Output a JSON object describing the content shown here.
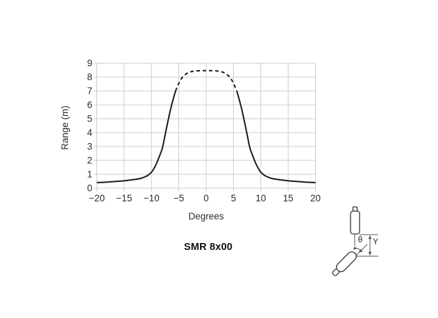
{
  "chart_data": {
    "type": "line",
    "title": "",
    "xlabel": "Degrees",
    "ylabel": "Range (m)",
    "caption": "SMR 8x00",
    "xlim": [
      -20,
      20
    ],
    "ylim": [
      0,
      9
    ],
    "xticks": [
      -20,
      -15,
      -10,
      -5,
      0,
      5,
      10,
      15,
      20
    ],
    "yticks": [
      0,
      1,
      2,
      3,
      4,
      5,
      6,
      7,
      8,
      9
    ],
    "grid": true,
    "grid_color": "#cccccc",
    "line_color": "#1a1a1a",
    "series": [
      {
        "name": "range-solid-left",
        "style": "solid",
        "points": [
          [
            -20,
            0.4
          ],
          [
            -19,
            0.42
          ],
          [
            -18,
            0.44
          ],
          [
            -17,
            0.47
          ],
          [
            -16,
            0.5
          ],
          [
            -15,
            0.53
          ],
          [
            -14,
            0.58
          ],
          [
            -13,
            0.63
          ],
          [
            -12,
            0.7
          ],
          [
            -11,
            0.85
          ],
          [
            -10.5,
            0.97
          ],
          [
            -10,
            1.15
          ],
          [
            -9.5,
            1.45
          ],
          [
            -9,
            1.85
          ],
          [
            -8.5,
            2.35
          ],
          [
            -8,
            2.9
          ],
          [
            -7.5,
            3.85
          ],
          [
            -7,
            4.8
          ],
          [
            -6.5,
            5.7
          ],
          [
            -6,
            6.45
          ],
          [
            -5.6,
            7.0
          ]
        ]
      },
      {
        "name": "range-peak-dashed",
        "style": "dashed",
        "points": [
          [
            -5.6,
            7.0
          ],
          [
            -5,
            7.55
          ],
          [
            -4.5,
            7.9
          ],
          [
            -4,
            8.12
          ],
          [
            -3.5,
            8.27
          ],
          [
            -3,
            8.36
          ],
          [
            -2.5,
            8.41
          ],
          [
            -2,
            8.44
          ],
          [
            -1,
            8.46
          ],
          [
            0,
            8.46
          ],
          [
            1,
            8.46
          ],
          [
            2,
            8.44
          ],
          [
            2.5,
            8.41
          ],
          [
            3,
            8.36
          ],
          [
            3.5,
            8.27
          ],
          [
            4,
            8.12
          ],
          [
            4.5,
            7.9
          ],
          [
            5,
            7.55
          ],
          [
            5.6,
            7.0
          ]
        ]
      },
      {
        "name": "range-solid-right",
        "style": "solid",
        "points": [
          [
            5.6,
            7.0
          ],
          [
            6,
            6.45
          ],
          [
            6.5,
            5.7
          ],
          [
            7,
            4.8
          ],
          [
            7.5,
            3.85
          ],
          [
            8,
            2.9
          ],
          [
            8.5,
            2.35
          ],
          [
            9,
            1.85
          ],
          [
            9.5,
            1.45
          ],
          [
            10,
            1.15
          ],
          [
            10.5,
            0.97
          ],
          [
            11,
            0.85
          ],
          [
            12,
            0.7
          ],
          [
            13,
            0.63
          ],
          [
            14,
            0.58
          ],
          [
            15,
            0.53
          ],
          [
            16,
            0.5
          ],
          [
            17,
            0.47
          ],
          [
            18,
            0.44
          ],
          [
            19,
            0.42
          ],
          [
            20,
            0.4
          ]
        ]
      }
    ]
  },
  "diagram": {
    "theta_label": "θ",
    "y_label": "Y"
  }
}
